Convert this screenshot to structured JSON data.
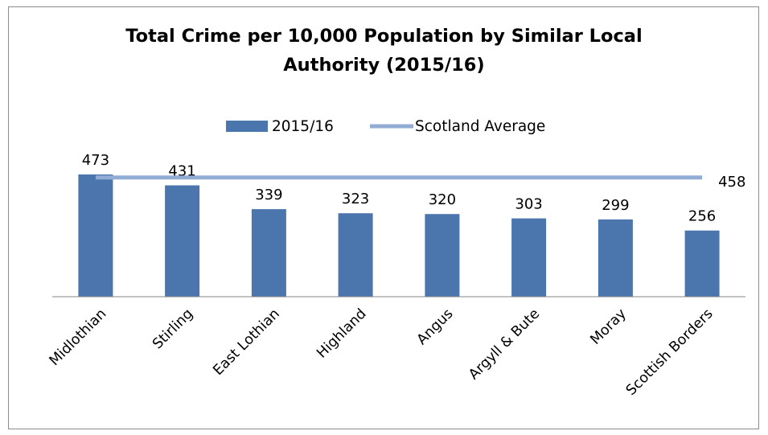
{
  "chart_data": {
    "type": "bar",
    "title_lines": [
      "Total  Crime per 10,000 Population by Similar Local",
      "Authority (2015/16)"
    ],
    "categories": [
      "Midlothian",
      "Stirling",
      "East Lothian",
      "Highland",
      "Angus",
      "Argyll & Bute",
      "Moray",
      "Scottish Borders"
    ],
    "series": [
      {
        "name": "2015/16",
        "type": "bar",
        "color": "#4a76ad",
        "values": [
          473,
          431,
          339,
          323,
          320,
          303,
          299,
          256
        ]
      },
      {
        "name": "Scotland Average",
        "type": "line",
        "color": "#93acd6",
        "value": 458,
        "value_label": "458"
      }
    ],
    "data_labels": [
      "473",
      "431",
      "339",
      "323",
      "320",
      "303",
      "299",
      "256"
    ],
    "ylim": [
      0,
      500
    ],
    "y_axis_visible": false,
    "grid": false,
    "legend_position": "top"
  }
}
